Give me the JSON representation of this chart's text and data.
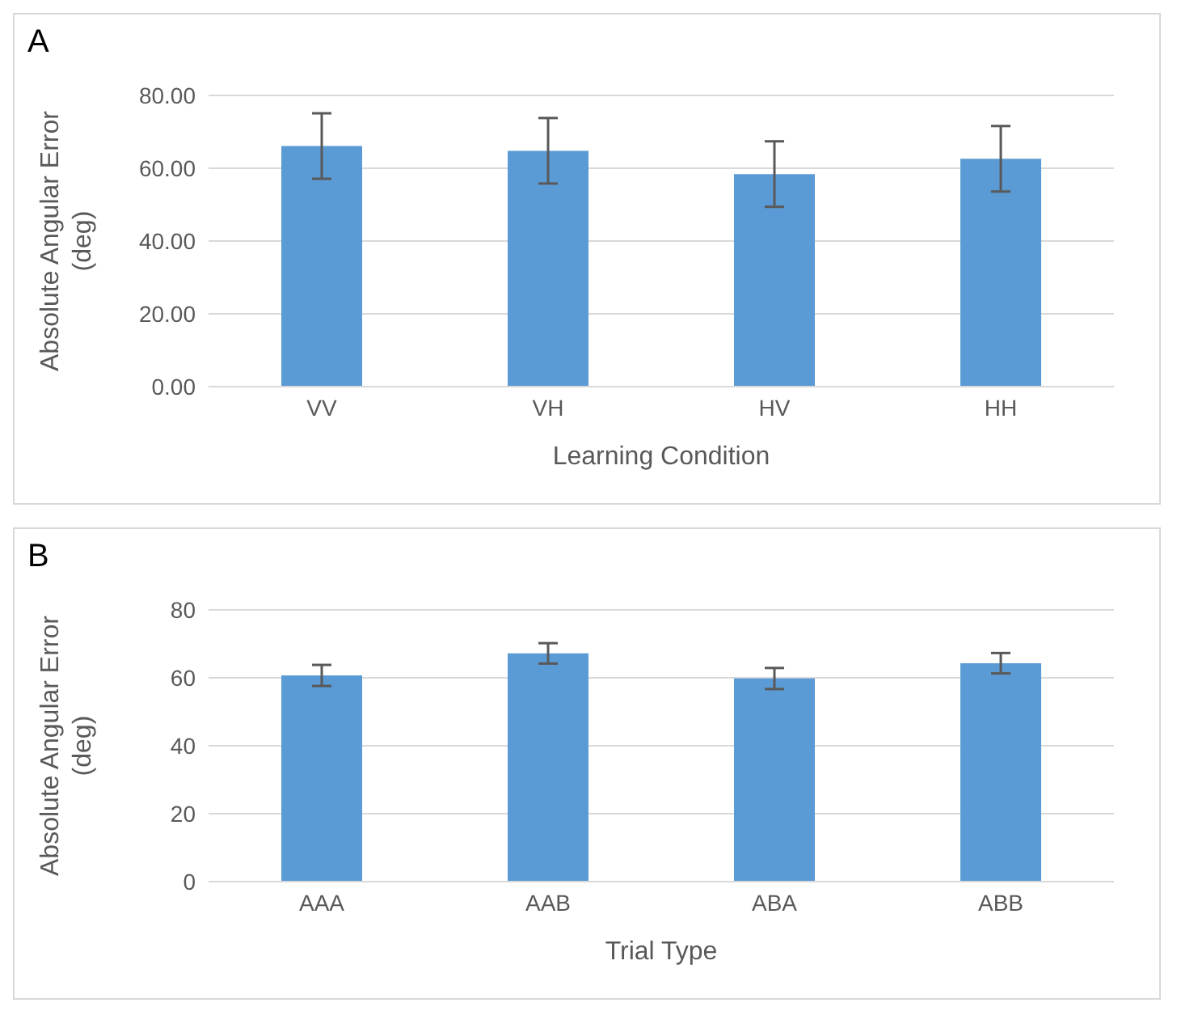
{
  "chart_data": [
    {
      "type": "bar",
      "title": "A",
      "xlabel": "Learning Condition",
      "ylabel": "Absolute Angular Error (deg)",
      "categories": [
        "VV",
        "VH",
        "HV",
        "HH"
      ],
      "values": [
        66.1,
        64.8,
        58.4,
        62.6
      ],
      "errors": [
        9,
        9,
        9,
        9
      ],
      "color": "#5b9bd5",
      "ylim": [
        0,
        80
      ],
      "yticks": [
        {
          "value": 0,
          "label": "0.00"
        },
        {
          "value": 20,
          "label": "20.00"
        },
        {
          "value": 40,
          "label": "40.00"
        },
        {
          "value": 60,
          "label": "60.00"
        },
        {
          "value": 80,
          "label": "80.00"
        }
      ],
      "grid": "y"
    },
    {
      "type": "bar",
      "title": "B",
      "xlabel": "Trial Type",
      "ylabel": "Absolute Angular Error (deg)",
      "categories": [
        "AAA",
        "AAB",
        "ABA",
        "ABB"
      ],
      "values": [
        60.7,
        67.2,
        59.8,
        64.3
      ],
      "errors": [
        3.1,
        3,
        3.1,
        3
      ],
      "color": "#5b9bd5",
      "ylim": [
        0,
        80
      ],
      "yticks": [
        0,
        20,
        40,
        60,
        80
      ],
      "grid": "y"
    }
  ]
}
